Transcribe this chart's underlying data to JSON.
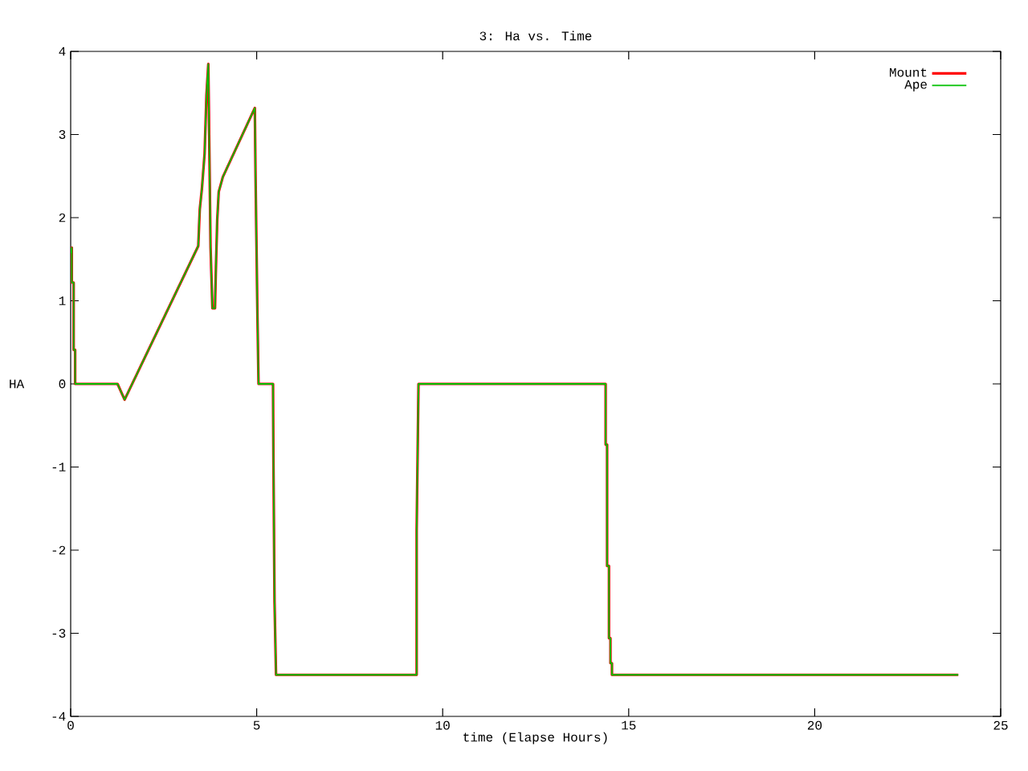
{
  "chart_data": {
    "type": "line",
    "title": "3: Ha vs. Time",
    "xlabel": "time (Elapse Hours)",
    "ylabel": "HA",
    "x": [
      0,
      0.03,
      0.03,
      0.08,
      0.08,
      0.12,
      0.12,
      1.26,
      1.45,
      3.43,
      3.47,
      3.53,
      3.6,
      3.65,
      3.7,
      3.72,
      3.76,
      3.81,
      3.88,
      3.9,
      3.94,
      3.98,
      4.09,
      4.95,
      4.97,
      5.02,
      5.05,
      5.44,
      5.45,
      5.48,
      5.52,
      9.3,
      9.3,
      9.35,
      14.38,
      14.38,
      14.42,
      14.42,
      14.47,
      14.47,
      14.51,
      14.51,
      14.55,
      14.55,
      23.86
    ],
    "series": [
      {
        "name": "Mount",
        "color": "#ff0000",
        "values": [
          1.57,
          1.64,
          1.22,
          1.22,
          0.41,
          0.41,
          0,
          0,
          -0.19,
          1.66,
          2.1,
          2.36,
          2.77,
          3.48,
          3.85,
          3.1,
          1.64,
          0.91,
          0.91,
          1.32,
          1.98,
          2.31,
          2.49,
          3.32,
          2.49,
          0.83,
          0,
          0,
          -0.89,
          -2.63,
          -3.5,
          -3.5,
          -1.76,
          0,
          0,
          -0.73,
          -0.73,
          -2.19,
          -2.19,
          -3.06,
          -3.06,
          -3.36,
          -3.36,
          -3.5,
          -3.5
        ]
      },
      {
        "name": "Ape",
        "color": "#00c000",
        "values": [
          1.57,
          1.64,
          1.22,
          1.22,
          0.41,
          0.41,
          0,
          0,
          -0.19,
          1.66,
          2.1,
          2.36,
          2.77,
          3.48,
          3.85,
          3.1,
          1.64,
          0.91,
          0.91,
          1.32,
          1.98,
          2.31,
          2.49,
          3.32,
          2.49,
          0.83,
          0,
          0,
          -0.89,
          -2.63,
          -3.5,
          -3.5,
          -1.76,
          0,
          0,
          -0.73,
          -0.73,
          -2.19,
          -2.19,
          -3.06,
          -3.06,
          -3.36,
          -3.36,
          -3.5,
          -3.5
        ]
      }
    ],
    "xlim": [
      0,
      25
    ],
    "xticks": [
      0,
      5,
      10,
      15,
      20,
      25
    ],
    "ylim": [
      -4,
      4
    ],
    "yticks": [
      -4,
      -3,
      -2,
      -1,
      0,
      1,
      2,
      3,
      4
    ],
    "legend": "top right",
    "grid": false,
    "marker": "none",
    "line_style": "solid"
  }
}
